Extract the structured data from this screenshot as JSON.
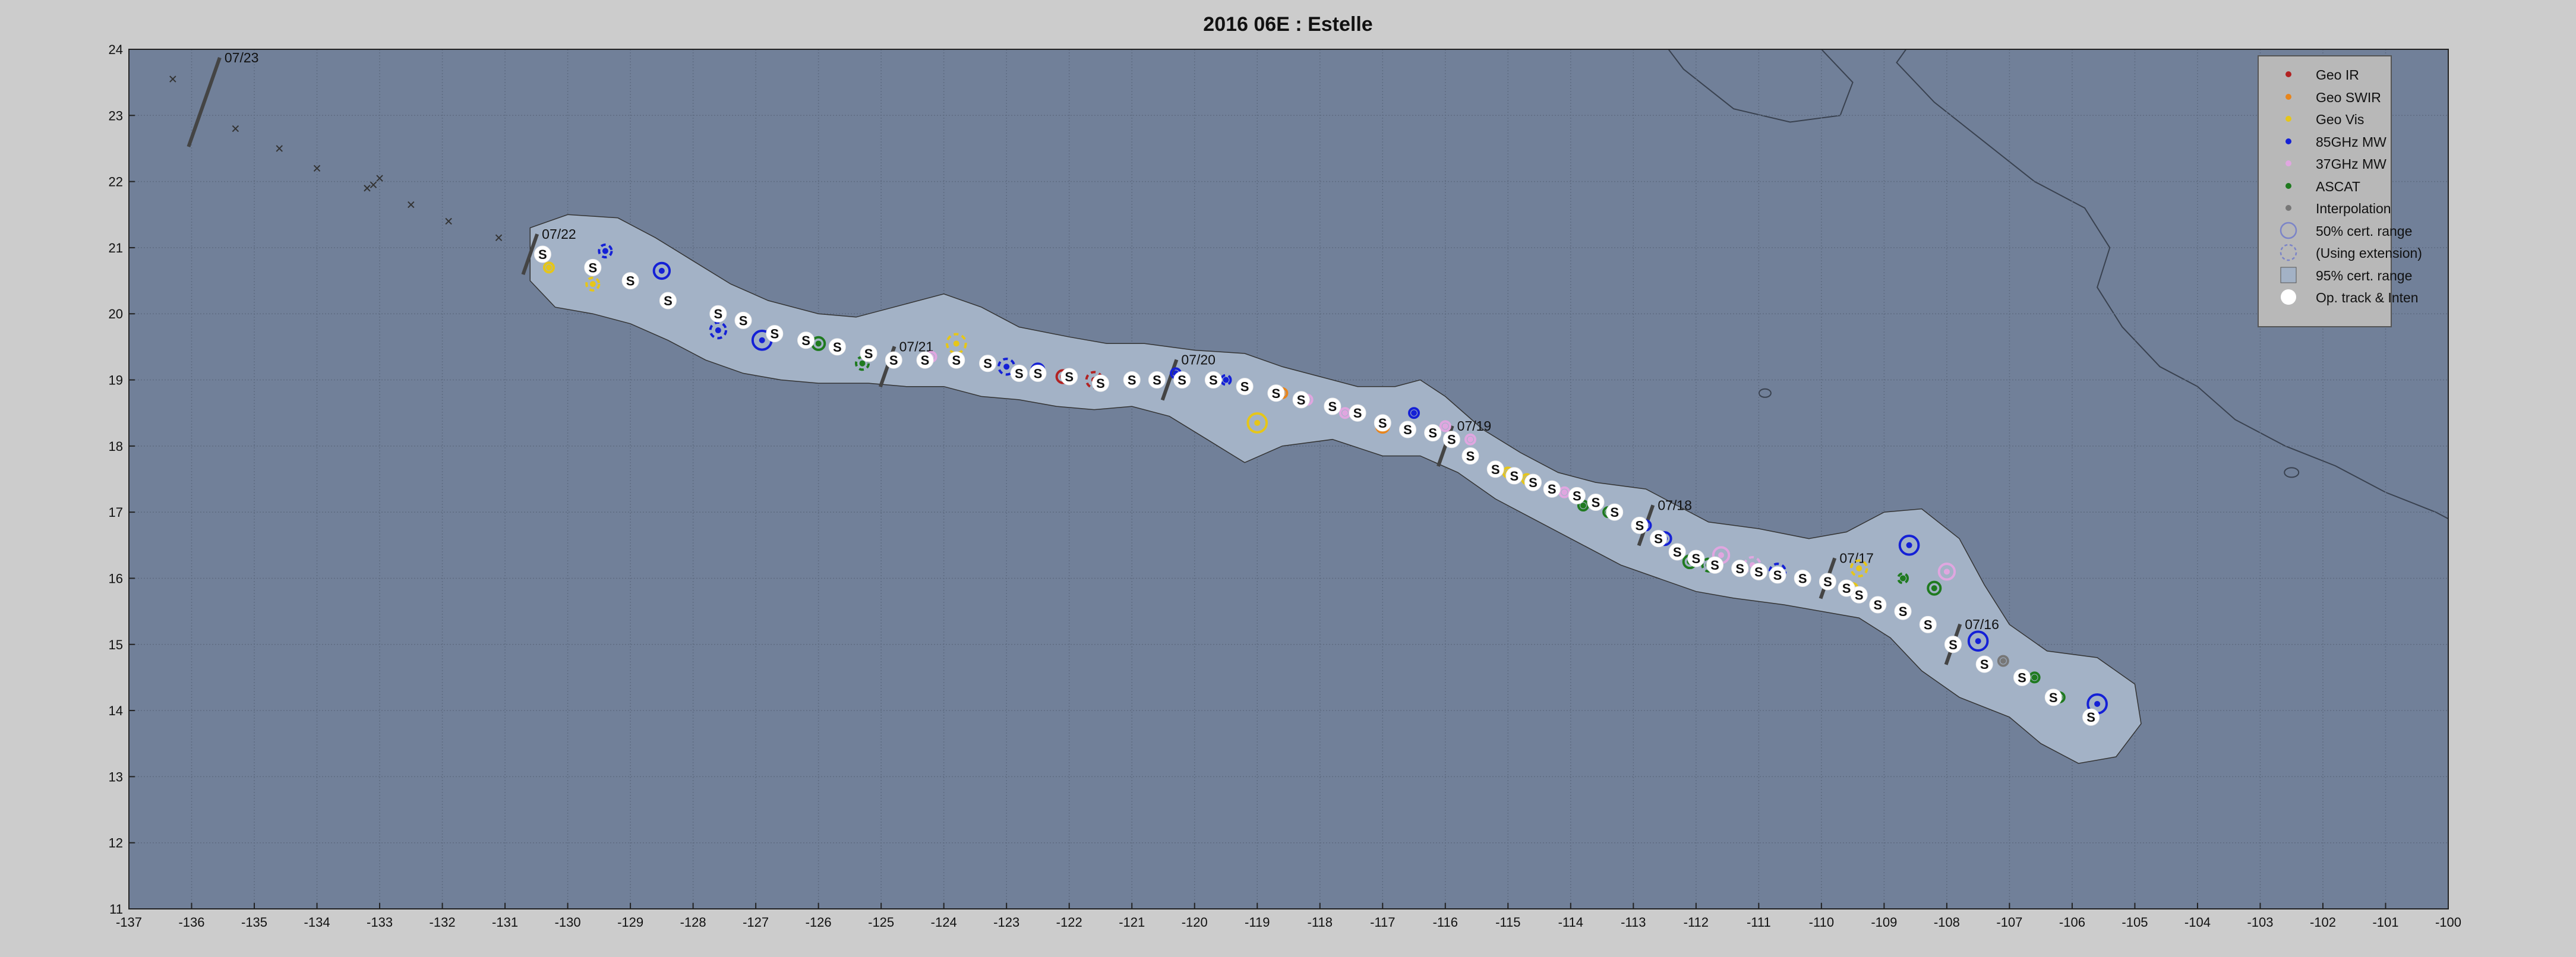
{
  "title": "2016  06E :  Estelle",
  "chart_data": {
    "type": "scatter",
    "title": "2016  06E :  Estelle",
    "xlabel": "",
    "ylabel": "",
    "xlim": [
      -137,
      -100
    ],
    "ylim": [
      11,
      24
    ],
    "xticks": [
      -137,
      -136,
      -135,
      -134,
      -133,
      -132,
      -131,
      -130,
      -129,
      -128,
      -127,
      -126,
      -125,
      -124,
      -123,
      -122,
      -121,
      -120,
      -119,
      -118,
      -117,
      -116,
      -115,
      -114,
      -113,
      -112,
      -111,
      -110,
      -109,
      -108,
      -107,
      -106,
      -105,
      -104,
      -103,
      -102,
      -101,
      -100
    ],
    "yticks": [
      11,
      12,
      13,
      14,
      15,
      16,
      17,
      18,
      19,
      20,
      21,
      22,
      23,
      24
    ],
    "grid": true,
    "legend_position": "top-right",
    "colors": {
      "ocean": "#718099",
      "cone": "#a3b2c6",
      "land_line": "#39414f",
      "grid": "#5f6c82",
      "geo_ir": "#b22222",
      "geo_swir": "#e8851c",
      "geo_vis": "#e6c619",
      "mw85": "#1420d6",
      "mw37": "#e0a6e0",
      "ascat": "#1f7a1f",
      "interp": "#777777",
      "track": "#ffffff",
      "tick_mark": "#444444"
    },
    "legend": [
      {
        "label": "Geo IR",
        "kind": "dot",
        "color": "geo_ir"
      },
      {
        "label": "Geo SWIR",
        "kind": "dot",
        "color": "geo_swir"
      },
      {
        "label": "Geo Vis",
        "kind": "dot",
        "color": "geo_vis"
      },
      {
        "label": "85GHz MW",
        "kind": "dot",
        "color": "mw85"
      },
      {
        "label": "37GHz MW",
        "kind": "dot",
        "color": "mw37"
      },
      {
        "label": "ASCAT",
        "kind": "dot",
        "color": "ascat"
      },
      {
        "label": "Interpolation",
        "kind": "dot",
        "color": "interp"
      },
      {
        "label": "50% cert. range",
        "kind": "circle",
        "color": "#7b84c8"
      },
      {
        "label": "(Using extension)",
        "kind": "dashed-circle",
        "color": "#7b84c8"
      },
      {
        "label": "95% cert. range",
        "kind": "square",
        "color": "#a3b2c6"
      },
      {
        "label": "Op. track & Inten",
        "kind": "white-dot",
        "color": "#ffffff"
      }
    ],
    "cone_envelope": [
      [
        -130.6,
        20.5
      ],
      [
        -130.6,
        21.3
      ],
      [
        -130.0,
        21.5
      ],
      [
        -129.2,
        21.45
      ],
      [
        -128.6,
        21.15
      ],
      [
        -128.0,
        20.8
      ],
      [
        -127.4,
        20.45
      ],
      [
        -126.8,
        20.2
      ],
      [
        -126.0,
        20.0
      ],
      [
        -125.4,
        19.95
      ],
      [
        -124.6,
        20.15
      ],
      [
        -124.0,
        20.3
      ],
      [
        -123.4,
        20.1
      ],
      [
        -122.8,
        19.8
      ],
      [
        -122.0,
        19.65
      ],
      [
        -121.4,
        19.55
      ],
      [
        -120.8,
        19.55
      ],
      [
        -120.0,
        19.45
      ],
      [
        -119.2,
        19.4
      ],
      [
        -118.6,
        19.2
      ],
      [
        -118.0,
        19.05
      ],
      [
        -117.4,
        18.9
      ],
      [
        -116.8,
        18.9
      ],
      [
        -116.4,
        19.0
      ],
      [
        -116.0,
        18.75
      ],
      [
        -115.4,
        18.25
      ],
      [
        -114.8,
        17.9
      ],
      [
        -114.2,
        17.6
      ],
      [
        -113.6,
        17.45
      ],
      [
        -112.8,
        17.35
      ],
      [
        -112.4,
        17.15
      ],
      [
        -111.8,
        16.85
      ],
      [
        -111.0,
        16.75
      ],
      [
        -110.2,
        16.6
      ],
      [
        -109.6,
        16.7
      ],
      [
        -109.0,
        17.0
      ],
      [
        -108.4,
        17.05
      ],
      [
        -107.8,
        16.6
      ],
      [
        -107.4,
        15.9
      ],
      [
        -107.0,
        15.3
      ],
      [
        -106.4,
        14.9
      ],
      [
        -105.6,
        14.8
      ],
      [
        -105.0,
        14.4
      ],
      [
        -104.9,
        13.8
      ],
      [
        -105.3,
        13.3
      ],
      [
        -105.9,
        13.2
      ],
      [
        -106.5,
        13.5
      ],
      [
        -107.0,
        13.9
      ],
      [
        -107.8,
        14.2
      ],
      [
        -108.4,
        14.6
      ],
      [
        -108.9,
        15.1
      ],
      [
        -109.4,
        15.4
      ],
      [
        -110.0,
        15.5
      ],
      [
        -110.6,
        15.6
      ],
      [
        -111.4,
        15.7
      ],
      [
        -112.0,
        15.8
      ],
      [
        -112.6,
        16.0
      ],
      [
        -113.2,
        16.2
      ],
      [
        -113.8,
        16.5
      ],
      [
        -114.6,
        16.9
      ],
      [
        -115.2,
        17.2
      ],
      [
        -115.8,
        17.6
      ],
      [
        -116.4,
        17.85
      ],
      [
        -117.0,
        17.85
      ],
      [
        -117.8,
        18.1
      ],
      [
        -118.6,
        18.0
      ],
      [
        -119.2,
        17.75
      ],
      [
        -119.8,
        18.1
      ],
      [
        -120.4,
        18.45
      ],
      [
        -121.0,
        18.6
      ],
      [
        -121.6,
        18.55
      ],
      [
        -122.2,
        18.6
      ],
      [
        -122.8,
        18.7
      ],
      [
        -123.4,
        18.75
      ],
      [
        -124.0,
        18.9
      ],
      [
        -124.6,
        18.9
      ],
      [
        -125.2,
        18.95
      ],
      [
        -126.0,
        18.95
      ],
      [
        -126.6,
        19.0
      ],
      [
        -127.2,
        19.1
      ],
      [
        -127.8,
        19.3
      ],
      [
        -128.4,
        19.6
      ],
      [
        -129.0,
        19.85
      ],
      [
        -129.6,
        20.0
      ],
      [
        -130.2,
        20.1
      ]
    ],
    "track": [
      [
        -105.7,
        13.9
      ],
      [
        -106.3,
        14.2
      ],
      [
        -106.8,
        14.5
      ],
      [
        -107.4,
        14.7
      ],
      [
        -107.9,
        15.0
      ],
      [
        -108.3,
        15.3
      ],
      [
        -108.7,
        15.5
      ],
      [
        -109.1,
        15.6
      ],
      [
        -109.4,
        15.75
      ],
      [
        -109.6,
        15.85
      ],
      [
        -109.9,
        15.95
      ],
      [
        -110.3,
        16.0
      ],
      [
        -110.7,
        16.05
      ],
      [
        -111.0,
        16.1
      ],
      [
        -111.3,
        16.15
      ],
      [
        -111.7,
        16.2
      ],
      [
        -112.0,
        16.3
      ],
      [
        -112.3,
        16.4
      ],
      [
        -112.6,
        16.6
      ],
      [
        -112.9,
        16.8
      ],
      [
        -113.3,
        17.0
      ],
      [
        -113.6,
        17.15
      ],
      [
        -113.9,
        17.25
      ],
      [
        -114.3,
        17.35
      ],
      [
        -114.6,
        17.45
      ],
      [
        -114.9,
        17.55
      ],
      [
        -115.2,
        17.65
      ],
      [
        -115.6,
        17.85
      ],
      [
        -115.9,
        18.1
      ],
      [
        -116.2,
        18.2
      ],
      [
        -116.6,
        18.25
      ],
      [
        -117.0,
        18.35
      ],
      [
        -117.4,
        18.5
      ],
      [
        -117.8,
        18.6
      ],
      [
        -118.3,
        18.7
      ],
      [
        -118.7,
        18.8
      ],
      [
        -119.2,
        18.9
      ],
      [
        -119.7,
        19.0
      ],
      [
        -120.2,
        19.0
      ],
      [
        -120.6,
        19.0
      ],
      [
        -121.0,
        19.0
      ],
      [
        -121.5,
        18.95
      ],
      [
        -122.0,
        19.05
      ],
      [
        -122.5,
        19.1
      ],
      [
        -122.8,
        19.1
      ],
      [
        -123.3,
        19.25
      ],
      [
        -123.8,
        19.3
      ],
      [
        -124.3,
        19.3
      ],
      [
        -124.8,
        19.3
      ],
      [
        -125.2,
        19.4
      ],
      [
        -125.7,
        19.5
      ],
      [
        -126.2,
        19.6
      ],
      [
        -126.7,
        19.7
      ],
      [
        -127.2,
        19.9
      ],
      [
        -127.6,
        20.0
      ],
      [
        -128.4,
        20.2
      ],
      [
        -129.0,
        20.5
      ],
      [
        -129.6,
        20.7
      ],
      [
        -130.4,
        20.9
      ]
    ],
    "fixes": [
      {
        "x": -105.6,
        "y": 14.1,
        "s": "85GHz MW",
        "c": "mw85",
        "r": 0.3,
        "d": false
      },
      {
        "x": -106.2,
        "y": 14.2,
        "s": "ASCAT",
        "c": "ascat",
        "r": 0.1,
        "d": false
      },
      {
        "x": -106.6,
        "y": 14.5,
        "s": "ASCAT",
        "c": "ascat",
        "r": 0.12,
        "d": false
      },
      {
        "x": -107.1,
        "y": 14.75,
        "s": "Interpolation",
        "c": "interp",
        "r": 0.13,
        "d": false
      },
      {
        "x": -107.5,
        "y": 15.05,
        "s": "85GHz MW",
        "c": "mw85",
        "r": 0.3,
        "d": false
      },
      {
        "x": -108.2,
        "y": 15.85,
        "s": "ASCAT",
        "c": "ascat",
        "r": 0.2,
        "d": false
      },
      {
        "x": -108.6,
        "y": 16.5,
        "s": "85GHz MW",
        "c": "mw85",
        "r": 0.3,
        "d": false
      },
      {
        "x": -108.0,
        "y": 16.1,
        "s": "37GHz MW",
        "c": "mw37",
        "r": 0.25,
        "d": false
      },
      {
        "x": -108.7,
        "y": 16.0,
        "s": "ASCAT",
        "c": "ascat",
        "r": 0.15,
        "d": true
      },
      {
        "x": -109.4,
        "y": 16.15,
        "s": "Geo Vis",
        "c": "geo_vis",
        "r": 0.25,
        "d": true
      },
      {
        "x": -109.5,
        "y": 15.85,
        "s": "Geo Vis",
        "c": "geo_vis",
        "r": 0.08,
        "d": false
      },
      {
        "x": -110.7,
        "y": 16.1,
        "s": "85GHz MW",
        "c": "mw85",
        "r": 0.25,
        "d": true
      },
      {
        "x": -111.1,
        "y": 16.2,
        "s": "37GHz MW",
        "c": "mw37",
        "r": 0.25,
        "d": true
      },
      {
        "x": -111.6,
        "y": 16.35,
        "s": "37GHz MW",
        "c": "mw37",
        "r": 0.25,
        "d": false
      },
      {
        "x": -111.8,
        "y": 16.2,
        "s": "ASCAT",
        "c": "ascat",
        "r": 0.2,
        "d": true
      },
      {
        "x": -112.1,
        "y": 16.25,
        "s": "ASCAT",
        "c": "ascat",
        "r": 0.2,
        "d": false
      },
      {
        "x": -112.5,
        "y": 16.6,
        "s": "85GHz MW",
        "c": "mw85",
        "r": 0.2,
        "d": false
      },
      {
        "x": -112.8,
        "y": 16.8,
        "s": "85GHz MW",
        "c": "mw85",
        "r": 0.15,
        "d": false
      },
      {
        "x": -113.4,
        "y": 17.0,
        "s": "ASCAT",
        "c": "ascat",
        "r": 0.1,
        "d": false
      },
      {
        "x": -113.8,
        "y": 17.1,
        "s": "ASCAT",
        "c": "ascat",
        "r": 0.12,
        "d": false
      },
      {
        "x": -114.1,
        "y": 17.3,
        "s": "37GHz MW",
        "c": "mw37",
        "r": 0.1,
        "d": false
      },
      {
        "x": -114.7,
        "y": 17.5,
        "s": "Geo Vis",
        "c": "geo_vis",
        "r": 0.1,
        "d": false
      },
      {
        "x": -115.0,
        "y": 17.6,
        "s": "Geo Vis",
        "c": "geo_vis",
        "r": 0.1,
        "d": false
      },
      {
        "x": -115.6,
        "y": 18.1,
        "s": "37GHz MW",
        "c": "mw37",
        "r": 0.1,
        "d": false
      },
      {
        "x": -116.0,
        "y": 18.3,
        "s": "37GHz MW",
        "c": "mw37",
        "r": 0.1,
        "d": false
      },
      {
        "x": -116.5,
        "y": 18.5,
        "s": "85GHz MW",
        "c": "mw85",
        "r": 0.15,
        "d": false
      },
      {
        "x": -117.0,
        "y": 18.3,
        "s": "Geo SWIR",
        "c": "geo_swir",
        "r": 0.2,
        "d": false
      },
      {
        "x": -117.6,
        "y": 18.5,
        "s": "37GHz MW",
        "c": "mw37",
        "r": 0.1,
        "d": false
      },
      {
        "x": -118.2,
        "y": 18.7,
        "s": "37GHz MW",
        "c": "mw37",
        "r": 0.15,
        "d": false
      },
      {
        "x": -118.6,
        "y": 18.8,
        "s": "Geo SWIR",
        "c": "geo_swir",
        "r": 0.12,
        "d": false
      },
      {
        "x": -119.0,
        "y": 18.35,
        "s": "Geo Vis",
        "c": "geo_vis",
        "r": 0.3,
        "d": false
      },
      {
        "x": -119.5,
        "y": 19.0,
        "s": "85GHz MW",
        "c": "mw85",
        "r": 0.15,
        "d": true
      },
      {
        "x": -120.3,
        "y": 19.1,
        "s": "85GHz MW",
        "c": "mw85",
        "r": 0.15,
        "d": false
      },
      {
        "x": -121.0,
        "y": 19.0,
        "s": "85GHz MW",
        "c": "mw85",
        "r": 0.15,
        "d": false
      },
      {
        "x": -121.6,
        "y": 19.0,
        "s": "Geo IR",
        "c": "geo_ir",
        "r": 0.25,
        "d": true
      },
      {
        "x": -122.1,
        "y": 19.05,
        "s": "Geo IR",
        "c": "geo_ir",
        "r": 0.2,
        "d": false
      },
      {
        "x": -122.5,
        "y": 19.15,
        "s": "85GHz MW",
        "c": "mw85",
        "r": 0.2,
        "d": false
      },
      {
        "x": -123.0,
        "y": 19.2,
        "s": "85GHz MW",
        "c": "mw85",
        "r": 0.25,
        "d": true
      },
      {
        "x": -123.8,
        "y": 19.55,
        "s": "Geo Vis",
        "c": "geo_vis",
        "r": 0.3,
        "d": true
      },
      {
        "x": -124.2,
        "y": 19.35,
        "s": "37GHz MW",
        "c": "mw37",
        "r": 0.12,
        "d": false
      },
      {
        "x": -124.8,
        "y": 19.3,
        "s": "37GHz MW",
        "c": "mw37",
        "r": 0.12,
        "d": false
      },
      {
        "x": -125.3,
        "y": 19.25,
        "s": "ASCAT",
        "c": "ascat",
        "r": 0.2,
        "d": true
      },
      {
        "x": -126.0,
        "y": 19.55,
        "s": "ASCAT",
        "c": "ascat",
        "r": 0.2,
        "d": false
      },
      {
        "x": -126.9,
        "y": 19.6,
        "s": "85GHz MW",
        "c": "mw85",
        "r": 0.3,
        "d": false
      },
      {
        "x": -127.6,
        "y": 19.75,
        "s": "85GHz MW",
        "c": "mw85",
        "r": 0.25,
        "d": true
      },
      {
        "x": -128.5,
        "y": 20.65,
        "s": "85GHz MW",
        "c": "mw85",
        "r": 0.25,
        "d": false
      },
      {
        "x": -129.4,
        "y": 20.95,
        "s": "85GHz MW",
        "c": "mw85",
        "r": 0.2,
        "d": true
      },
      {
        "x": -129.6,
        "y": 20.45,
        "s": "Geo Vis",
        "c": "geo_vis",
        "r": 0.2,
        "d": true
      },
      {
        "x": -130.3,
        "y": 20.7,
        "s": "Geo Vis",
        "c": "geo_vis",
        "r": 0.15,
        "d": false
      }
    ],
    "date_marks": [
      {
        "label": "07/16",
        "x": -107.9,
        "y": 15.0
      },
      {
        "label": "07/17",
        "x": -109.9,
        "y": 16.0
      },
      {
        "label": "07/18",
        "x": -112.8,
        "y": 16.8
      },
      {
        "label": "07/19",
        "x": -116.0,
        "y": 18.0
      },
      {
        "label": "07/20",
        "x": -120.4,
        "y": 19.0
      },
      {
        "label": "07/21",
        "x": -124.9,
        "y": 19.2
      },
      {
        "label": "07/22",
        "x": -130.6,
        "y": 20.9
      },
      {
        "label": "07/23",
        "x": -135.8,
        "y": 23.2
      }
    ],
    "forecast_extension": [
      [
        -135.3,
        22.8
      ],
      [
        -134.6,
        22.5
      ],
      [
        -134.0,
        22.2
      ],
      [
        -133.2,
        21.9
      ],
      [
        -133.1,
        21.95
      ],
      [
        -133.0,
        22.05
      ],
      [
        -132.5,
        21.65
      ],
      [
        -131.9,
        21.4
      ],
      [
        -131.1,
        21.15
      ],
      [
        -136.3,
        23.55
      ]
    ]
  }
}
